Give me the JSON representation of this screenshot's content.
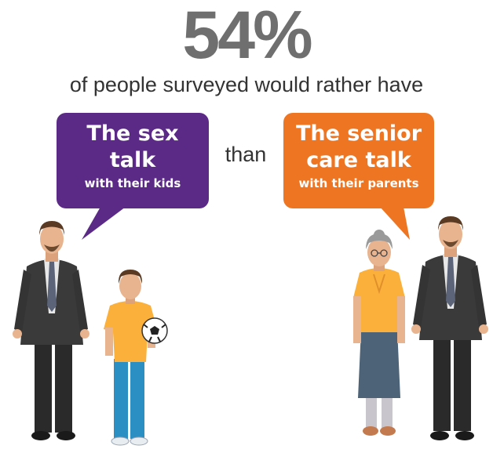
{
  "headline": {
    "stat": "54%",
    "subtitle": "of people surveyed would rather have"
  },
  "left_bubble": {
    "line1": "The sex",
    "line2": "talk",
    "detail": "with their kids",
    "color": "#5b2a86"
  },
  "connector": "than",
  "right_bubble": {
    "line1": "The senior",
    "line2": "care talk",
    "detail": "with their parents",
    "color": "#ee7623"
  },
  "illustrations": [
    {
      "name": "man-icon"
    },
    {
      "name": "boy-with-soccer-ball-icon"
    },
    {
      "name": "elderly-woman-icon"
    },
    {
      "name": "man-icon"
    }
  ]
}
